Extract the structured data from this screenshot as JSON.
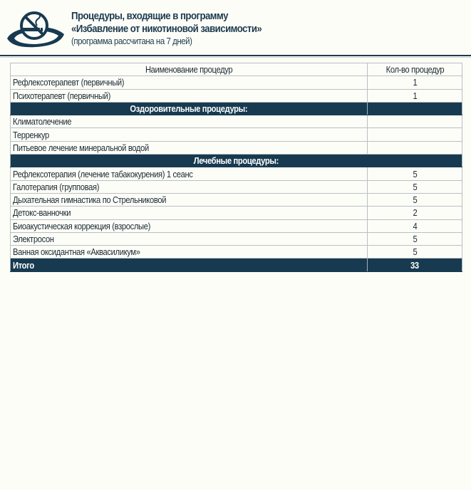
{
  "header": {
    "logo_icon": "no-smoking-icon",
    "title_line1": "Процедуры, входящие в программу",
    "title_line2": "«Избавление от никотиновой зависимости»",
    "subtitle": "(программа рассчитана на 7 дней)"
  },
  "colors": {
    "brand": "#173a50",
    "background": "#fdfdf8"
  },
  "table": {
    "columns": [
      "Наименование процедур",
      "Кол-во процедур"
    ],
    "rows": [
      {
        "name": "Рефлексотерапевт (первичный)",
        "count": "1"
      },
      {
        "name": "Психотерапевт (первичный)",
        "count": "1"
      }
    ],
    "section1": {
      "title": "Оздоровительные процедуры:",
      "rows": [
        {
          "name": "Климатолечение",
          "count": ""
        },
        {
          "name": "Терренкур",
          "count": ""
        },
        {
          "name": "Питьевое лечение минеральной водой",
          "count": ""
        }
      ]
    },
    "section2": {
      "title": "Лечебные процедуры:",
      "rows": [
        {
          "name": "Рефлексотерапия (лечение табакокурения) 1 сеанс",
          "count": "5"
        },
        {
          "name": "Галотерапия (групповая)",
          "count": "5"
        },
        {
          "name": "Дыхательная гимнастика по Стрельниковой",
          "count": "5"
        },
        {
          "name": "Детокс-ванночки",
          "count": "2"
        },
        {
          "name": "Биоакустическая коррекция (взрослые)",
          "count": "4"
        },
        {
          "name": "Электросон",
          "count": "5"
        },
        {
          "name": "Ванная оксидантная «Аквасиликум»",
          "count": "5"
        }
      ]
    },
    "total": {
      "label": "Итого",
      "count": "33"
    }
  }
}
